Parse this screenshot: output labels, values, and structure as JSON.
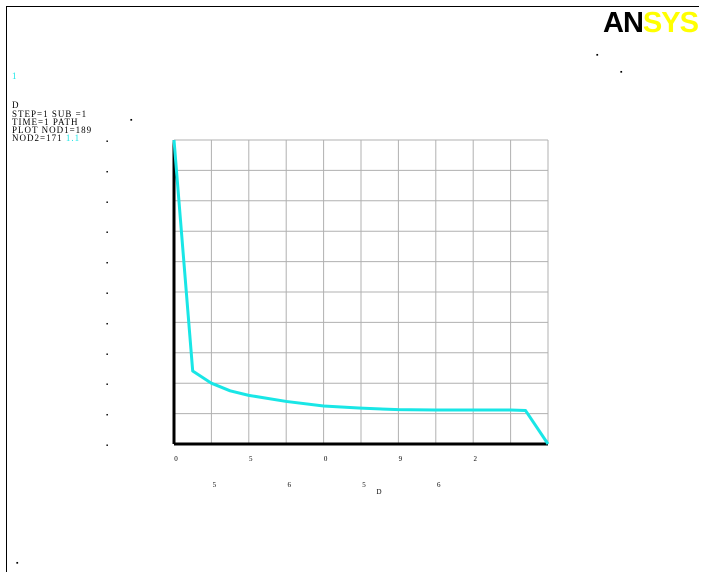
{
  "window": {
    "logo_dark": "AN",
    "logo_yellow": "SYS",
    "corner_mark_a": "▪",
    "corner_mark_b": "▪",
    "bottom_mark": "▪"
  },
  "legend": {
    "top_mark": "1",
    "number_mark": "D",
    "line1": "STEP=1 SUB =1",
    "line2": "TIME=1 PATH",
    "line3": "PLOT NOD1=189",
    "line4": "NOD2=171",
    "line4_curve": "1.1",
    "side_mark": "▪"
  },
  "chart_data": {
    "type": "line",
    "title": "",
    "xlabel": "D",
    "ylabel": "",
    "x_ticks_row1": [
      "0",
      "5",
      "0",
      "9",
      "2"
    ],
    "x_ticks_row2": [
      "5",
      "6",
      "5",
      "6"
    ],
    "y_ticks": [
      "▪",
      "▪",
      "▪",
      "▪",
      "▪",
      "▪",
      "▪",
      "▪",
      "▪",
      "▪",
      "▪"
    ],
    "xlim": [
      0,
      10
    ],
    "ylim": [
      0,
      10
    ],
    "grid": true,
    "series": [
      {
        "name": "1.1",
        "color": "#19e6e6",
        "x": [
          0,
          0.5,
          1,
          1.5,
          2,
          3,
          4,
          5,
          6,
          7,
          8,
          9,
          9.4,
          10
        ],
        "y": [
          10,
          2.4,
          2.0,
          1.75,
          1.6,
          1.4,
          1.25,
          1.18,
          1.13,
          1.12,
          1.12,
          1.12,
          1.1,
          0
        ]
      }
    ]
  }
}
